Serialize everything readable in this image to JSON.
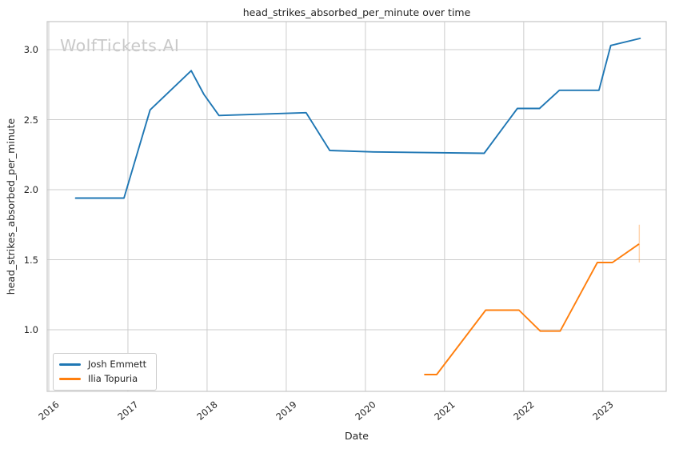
{
  "watermark": "WolfTickets.AI",
  "colors": {
    "series_blue": "#1f77b4",
    "series_orange": "#ff7f0e",
    "grid": "#cccccc",
    "spine": "#c6c6c6",
    "text": "#262626",
    "watermark": "#c9c9c9",
    "background": "#ffffff"
  },
  "chart_data": {
    "type": "line",
    "title": "head_strikes_absorbed_per_minute over time",
    "xlabel": "Date",
    "ylabel": "head_strikes_absorbed_per_minute",
    "grid": true,
    "legend_position": "lower left",
    "xlim": [
      2015.98,
      2023.8
    ],
    "ylim": [
      0.56,
      3.2
    ],
    "x_ticks": [
      {
        "value": 2016,
        "label": "2016"
      },
      {
        "value": 2017,
        "label": "2017"
      },
      {
        "value": 2018,
        "label": "2018"
      },
      {
        "value": 2019,
        "label": "2019"
      },
      {
        "value": 2020,
        "label": "2020"
      },
      {
        "value": 2021,
        "label": "2021"
      },
      {
        "value": 2022,
        "label": "2022"
      },
      {
        "value": 2023,
        "label": "2023"
      }
    ],
    "y_ticks": [
      {
        "value": 1.0,
        "label": "1.0"
      },
      {
        "value": 1.5,
        "label": "1.5"
      },
      {
        "value": 2.0,
        "label": "2.0"
      },
      {
        "value": 2.5,
        "label": "2.5"
      },
      {
        "value": 3.0,
        "label": "3.0"
      }
    ],
    "series": [
      {
        "name": "Josh Emmett",
        "color": "#1f77b4",
        "points": [
          [
            2016.34,
            1.94
          ],
          [
            2016.95,
            1.94
          ],
          [
            2017.28,
            2.57
          ],
          [
            2017.8,
            2.85
          ],
          [
            2017.96,
            2.68
          ],
          [
            2018.15,
            2.53
          ],
          [
            2019.25,
            2.55
          ],
          [
            2019.55,
            2.28
          ],
          [
            2020.1,
            2.27
          ],
          [
            2021.5,
            2.26
          ],
          [
            2021.92,
            2.58
          ],
          [
            2022.2,
            2.58
          ],
          [
            2022.45,
            2.71
          ],
          [
            2022.95,
            2.71
          ],
          [
            2023.1,
            3.03
          ],
          [
            2023.47,
            3.08
          ]
        ]
      },
      {
        "name": "Ilia Topuria",
        "color": "#ff7f0e",
        "points": [
          [
            2020.75,
            0.68
          ],
          [
            2020.9,
            0.68
          ],
          [
            2021.52,
            1.14
          ],
          [
            2021.94,
            1.14
          ],
          [
            2022.21,
            0.99
          ],
          [
            2022.46,
            0.99
          ],
          [
            2022.93,
            1.48
          ],
          [
            2023.12,
            1.48
          ],
          [
            2023.45,
            1.61
          ]
        ]
      }
    ],
    "error_bar": {
      "series": "Ilia Topuria",
      "x": 2023.46,
      "y_low": 1.48,
      "y_high": 1.75,
      "opacity": 0.35
    }
  }
}
